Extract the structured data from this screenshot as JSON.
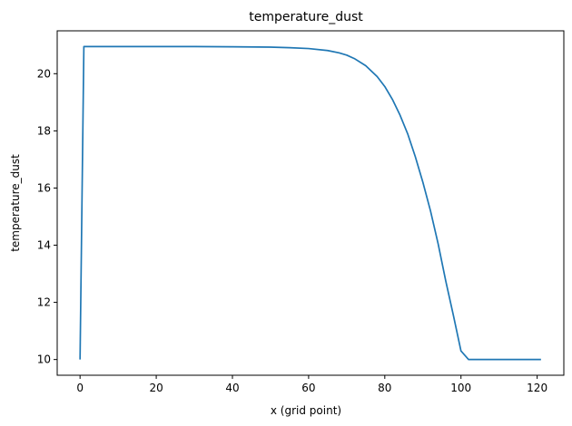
{
  "chart_data": {
    "type": "line",
    "title": "temperature_dust",
    "xlabel": "x (grid point)",
    "ylabel": "temperature_dust",
    "xlim": [
      -6,
      127
    ],
    "ylim": [
      9.45,
      21.5
    ],
    "xticks": [
      0,
      20,
      40,
      60,
      80,
      100,
      120
    ],
    "yticks": [
      10,
      12,
      14,
      16,
      18,
      20
    ],
    "grid": false,
    "legend": "none",
    "series": [
      {
        "color": "#1f77b4",
        "x": [
          0,
          1,
          10,
          20,
          30,
          40,
          50,
          55,
          60,
          65,
          68,
          70,
          72,
          75,
          78,
          80,
          82,
          84,
          86,
          88,
          90,
          92,
          94,
          96,
          98,
          100,
          102,
          103,
          104,
          110,
          121
        ],
        "y": [
          10.0,
          20.95,
          20.95,
          20.95,
          20.95,
          20.94,
          20.93,
          20.91,
          20.88,
          20.81,
          20.73,
          20.65,
          20.53,
          20.28,
          19.9,
          19.55,
          19.1,
          18.55,
          17.9,
          17.1,
          16.2,
          15.2,
          14.05,
          12.75,
          11.55,
          10.3,
          10.0,
          10.0,
          10.0,
          10.0,
          10.0
        ]
      }
    ]
  }
}
